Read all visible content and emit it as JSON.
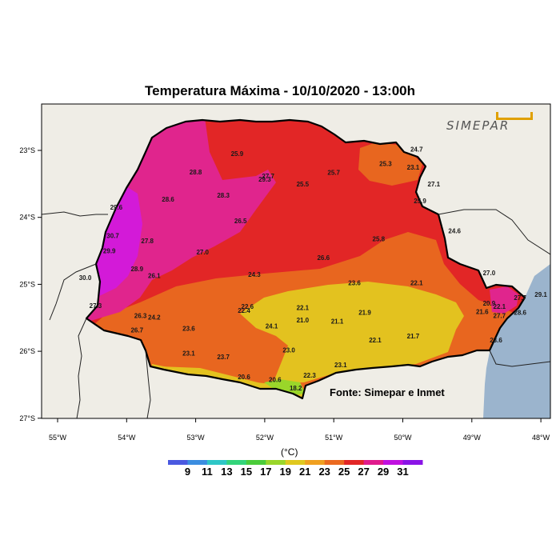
{
  "title": "Temperatura Máxima - 10/10/2020 - 13:00h",
  "source": "Fonte: Simepar e Inmet",
  "logo_text": "SIMEPAR",
  "unit": "(°C)",
  "lon_ticks": [
    "55°W",
    "54°W",
    "53°W",
    "52°W",
    "51°W",
    "50°W",
    "49°W",
    "48°W"
  ],
  "lat_ticks": [
    "23°S",
    "24°S",
    "25°S",
    "26°S",
    "27°S"
  ],
  "colorbar": {
    "labels": [
      "9",
      "11",
      "13",
      "15",
      "17",
      "19",
      "21",
      "23",
      "25",
      "27",
      "29",
      "31"
    ],
    "colors": [
      "#4a59e0",
      "#3b8de0",
      "#2ec6c6",
      "#33d47a",
      "#4bcc3a",
      "#9ad62a",
      "#e0c81f",
      "#f0a020",
      "#eb6a20",
      "#e22626",
      "#e01a8c",
      "#c010e0",
      "#8a14e6"
    ]
  },
  "colors": {
    "ocean": "#9bb4cd",
    "land": "#efede6",
    "red": "#e22626",
    "orange": "#e8661f",
    "yellow": "#e3c21f",
    "pink": "#e0258d",
    "magenta": "#d31ad8"
  },
  "stations": [
    {
      "v": "25.9",
      "lon": -52.4,
      "lat": -23.05
    },
    {
      "v": "28.8",
      "lon": -53.0,
      "lat": -23.32
    },
    {
      "v": "27.7",
      "lon": -51.95,
      "lat": -23.38
    },
    {
      "v": "29.3",
      "lon": -52.0,
      "lat": -23.43
    },
    {
      "v": "25.7",
      "lon": -51.0,
      "lat": -23.33
    },
    {
      "v": "25.5",
      "lon": -51.45,
      "lat": -23.5
    },
    {
      "v": "25.3",
      "lon": -50.25,
      "lat": -23.2
    },
    {
      "v": "24.7",
      "lon": -49.8,
      "lat": -22.98
    },
    {
      "v": "23.1",
      "lon": -49.85,
      "lat": -23.25
    },
    {
      "v": "27.1",
      "lon": -49.55,
      "lat": -23.5
    },
    {
      "v": "29.6",
      "lon": -54.15,
      "lat": -23.85
    },
    {
      "v": "28.6",
      "lon": -53.4,
      "lat": -23.73
    },
    {
      "v": "28.3",
      "lon": -52.6,
      "lat": -23.67
    },
    {
      "v": "25.9",
      "lon": -49.75,
      "lat": -23.75
    },
    {
      "v": "26.5",
      "lon": -52.35,
      "lat": -24.05
    },
    {
      "v": "30.7",
      "lon": -54.2,
      "lat": -24.27
    },
    {
      "v": "27.8",
      "lon": -53.7,
      "lat": -24.35
    },
    {
      "v": "29.9",
      "lon": -54.25,
      "lat": -24.5
    },
    {
      "v": "27.0",
      "lon": -52.9,
      "lat": -24.52
    },
    {
      "v": "25.8",
      "lon": -50.35,
      "lat": -24.32
    },
    {
      "v": "24.6",
      "lon": -49.25,
      "lat": -24.2
    },
    {
      "v": "26.6",
      "lon": -51.15,
      "lat": -24.6
    },
    {
      "v": "28.9",
      "lon": -53.85,
      "lat": -24.77
    },
    {
      "v": "26.1",
      "lon": -53.6,
      "lat": -24.87
    },
    {
      "v": "30.0",
      "lon": -54.6,
      "lat": -24.9
    },
    {
      "v": "24.3",
      "lon": -52.15,
      "lat": -24.85
    },
    {
      "v": "27.0",
      "lon": -48.75,
      "lat": -24.83
    },
    {
      "v": "23.6",
      "lon": -50.7,
      "lat": -24.98
    },
    {
      "v": "22.1",
      "lon": -49.8,
      "lat": -24.98
    },
    {
      "v": "27.3",
      "lon": -54.45,
      "lat": -25.32
    },
    {
      "v": "22.6",
      "lon": -52.25,
      "lat": -25.33
    },
    {
      "v": "22.1",
      "lon": -51.45,
      "lat": -25.35
    },
    {
      "v": "22.4",
      "lon": -52.3,
      "lat": -25.39
    },
    {
      "v": "21.9",
      "lon": -50.55,
      "lat": -25.42
    },
    {
      "v": "26.3",
      "lon": -53.8,
      "lat": -25.47
    },
    {
      "v": "24.2",
      "lon": -53.6,
      "lat": -25.49
    },
    {
      "v": "21.0",
      "lon": -51.45,
      "lat": -25.53
    },
    {
      "v": "21.1",
      "lon": -50.95,
      "lat": -25.55
    },
    {
      "v": "24.1",
      "lon": -51.9,
      "lat": -25.62
    },
    {
      "v": "23.6",
      "lon": -53.1,
      "lat": -25.66
    },
    {
      "v": "26.7",
      "lon": -53.85,
      "lat": -25.68
    },
    {
      "v": "20.9",
      "lon": -48.75,
      "lat": -25.28
    },
    {
      "v": "22.1",
      "lon": -48.6,
      "lat": -25.33
    },
    {
      "v": "21.6",
      "lon": -48.85,
      "lat": -25.41
    },
    {
      "v": "27.7",
      "lon": -48.3,
      "lat": -25.2
    },
    {
      "v": "29.1",
      "lon": -48.0,
      "lat": -25.15
    },
    {
      "v": "27.7",
      "lon": -48.6,
      "lat": -25.47
    },
    {
      "v": "28.6",
      "lon": -48.3,
      "lat": -25.42
    },
    {
      "v": "21.7",
      "lon": -49.85,
      "lat": -25.77
    },
    {
      "v": "22.1",
      "lon": -50.4,
      "lat": -25.83
    },
    {
      "v": "23.6",
      "lon": -48.65,
      "lat": -25.83
    },
    {
      "v": "23.0",
      "lon": -51.65,
      "lat": -25.98
    },
    {
      "v": "23.1",
      "lon": -53.1,
      "lat": -26.03
    },
    {
      "v": "23.7",
      "lon": -52.6,
      "lat": -26.08
    },
    {
      "v": "23.1",
      "lon": -50.9,
      "lat": -26.2
    },
    {
      "v": "20.6",
      "lon": -52.3,
      "lat": -26.38
    },
    {
      "v": "20.6",
      "lon": -51.85,
      "lat": -26.42
    },
    {
      "v": "22.3",
      "lon": -51.35,
      "lat": -26.36
    },
    {
      "v": "18.2",
      "lon": -51.55,
      "lat": -26.55
    }
  ]
}
